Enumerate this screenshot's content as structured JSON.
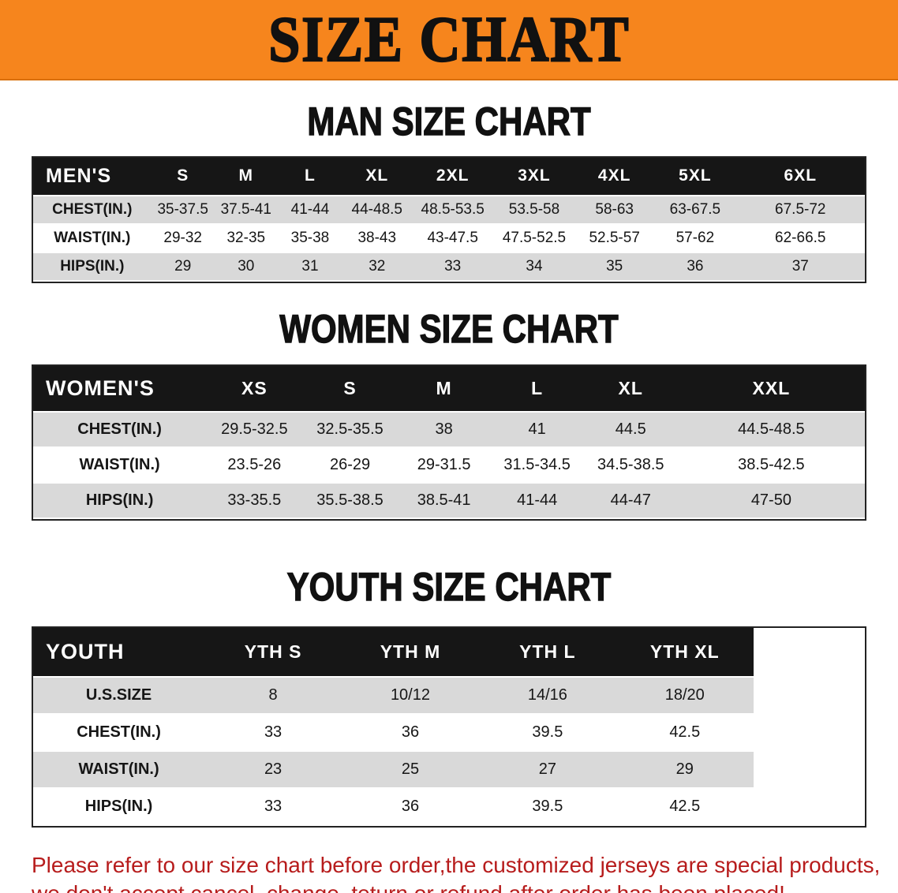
{
  "banner": {
    "title": "SIZE CHART"
  },
  "sections": [
    {
      "heading": "MAN SIZE CHART",
      "table": {
        "header": [
          "MEN'S",
          "S",
          "M",
          "L",
          "XL",
          "2XL",
          "3XL",
          "4XL",
          "5XL",
          "6XL"
        ],
        "rows": [
          [
            "CHEST(IN.)",
            "35-37.5",
            "37.5-41",
            "41-44",
            "44-48.5",
            "48.5-53.5",
            "53.5-58",
            "58-63",
            "63-67.5",
            "67.5-72"
          ],
          [
            "WAIST(IN.)",
            "29-32",
            "32-35",
            "35-38",
            "38-43",
            "43-47.5",
            "47.5-52.5",
            "52.5-57",
            "57-62",
            "62-66.5"
          ],
          [
            "HIPS(IN.)",
            "29",
            "30",
            "31",
            "32",
            "33",
            "34",
            "35",
            "36",
            "37"
          ]
        ]
      }
    },
    {
      "heading": "WOMEN SIZE CHART",
      "table": {
        "header": [
          "WOMEN'S",
          "XS",
          "S",
          "M",
          "L",
          "XL",
          "XXL"
        ],
        "rows": [
          [
            "CHEST(IN.)",
            "29.5-32.5",
            "32.5-35.5",
            "38",
            "41",
            "44.5",
            "44.5-48.5"
          ],
          [
            "WAIST(IN.)",
            "23.5-26",
            "26-29",
            "29-31.5",
            "31.5-34.5",
            "34.5-38.5",
            "38.5-42.5"
          ],
          [
            "HIPS(IN.)",
            "33-35.5",
            "35.5-38.5",
            "38.5-41",
            "41-44",
            "44-47",
            "47-50"
          ]
        ]
      }
    },
    {
      "heading": "YOUTH SIZE CHART",
      "table": {
        "header": [
          "YOUTH",
          "YTH S",
          "YTH M",
          "YTH L",
          "YTH XL"
        ],
        "rows": [
          [
            "U.S.SIZE",
            "8",
            "10/12",
            "14/16",
            "18/20"
          ],
          [
            "CHEST(IN.)",
            "33",
            "36",
            "39.5",
            "42.5"
          ],
          [
            "WAIST(IN.)",
            "23",
            "25",
            "27",
            "29"
          ],
          [
            "HIPS(IN.)",
            "33",
            "36",
            "39.5",
            "42.5"
          ]
        ]
      }
    }
  ],
  "disclaimer": {
    "lines": [
      "Please refer to our size chart before order,the customized jerseys are special products,",
      "we don't accept cancel, change, teturn or refund after order has been placed!"
    ]
  },
  "colors": {
    "banner_bg": "#f6851d",
    "heading_text": "#111111",
    "table_header_bg": "#161616",
    "table_header_text": "#ffffff",
    "row_shaded_bg": "#d9d9d9",
    "row_plain_bg": "#ffffff",
    "disclaimer_text": "#b71c1c"
  }
}
